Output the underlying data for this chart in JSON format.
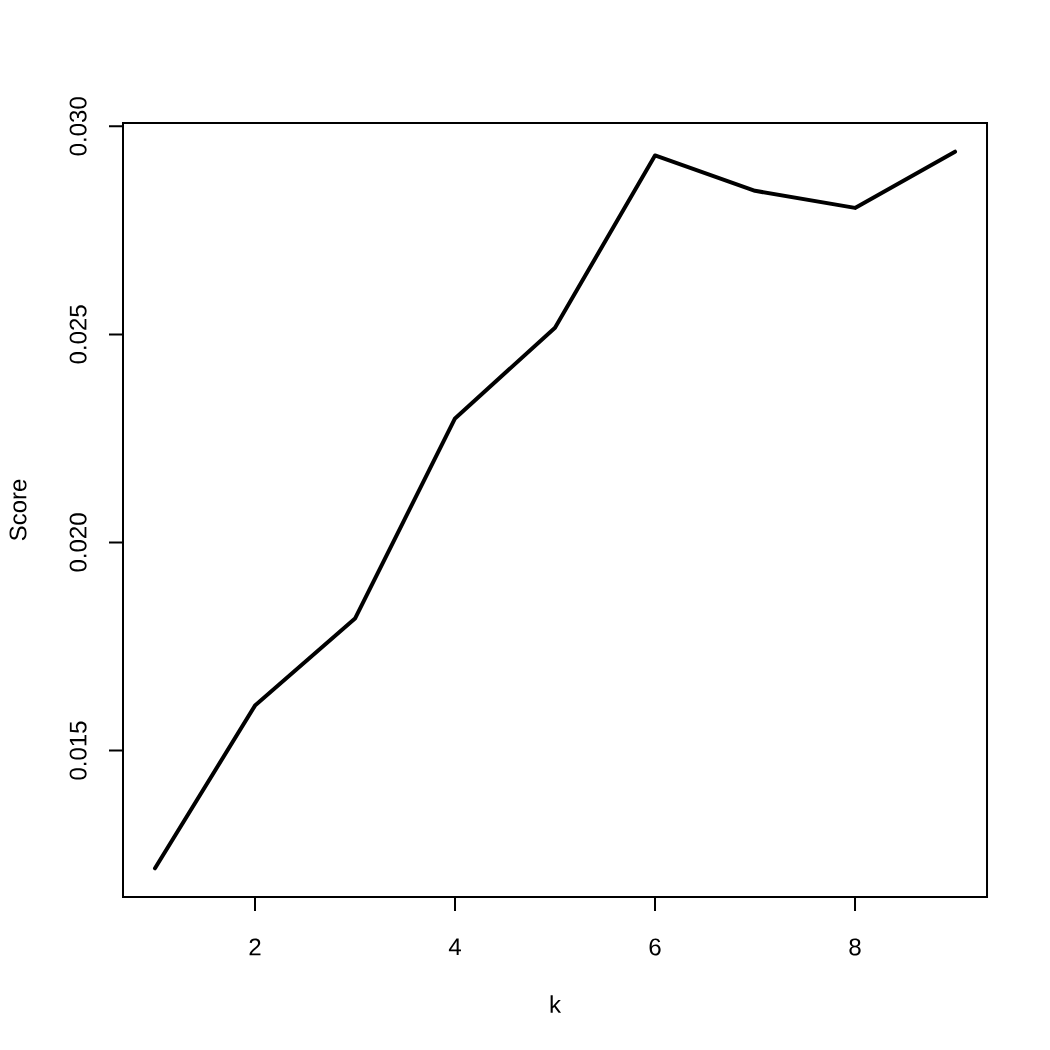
{
  "chart_data": {
    "type": "line",
    "xlabel": "k",
    "ylabel": "Score",
    "x": [
      1,
      2,
      3,
      4,
      5,
      6,
      7,
      8,
      9
    ],
    "values": [
      0.01217,
      0.01608,
      0.01817,
      0.02298,
      0.02516,
      0.0293,
      0.02845,
      0.02804,
      0.02939
    ],
    "color": "#000000",
    "marker": "none",
    "line_style": "solid",
    "xlim": [
      0.68,
      9.32
    ],
    "ylim": [
      0.01148,
      0.03008
    ],
    "xticks": [
      2,
      4,
      6,
      8
    ],
    "yticks": [
      0.015,
      {
        "value": 0.02,
        "label": "0.020"
      },
      0.025,
      {
        "value": 0.03,
        "label": "0.030"
      }
    ]
  }
}
